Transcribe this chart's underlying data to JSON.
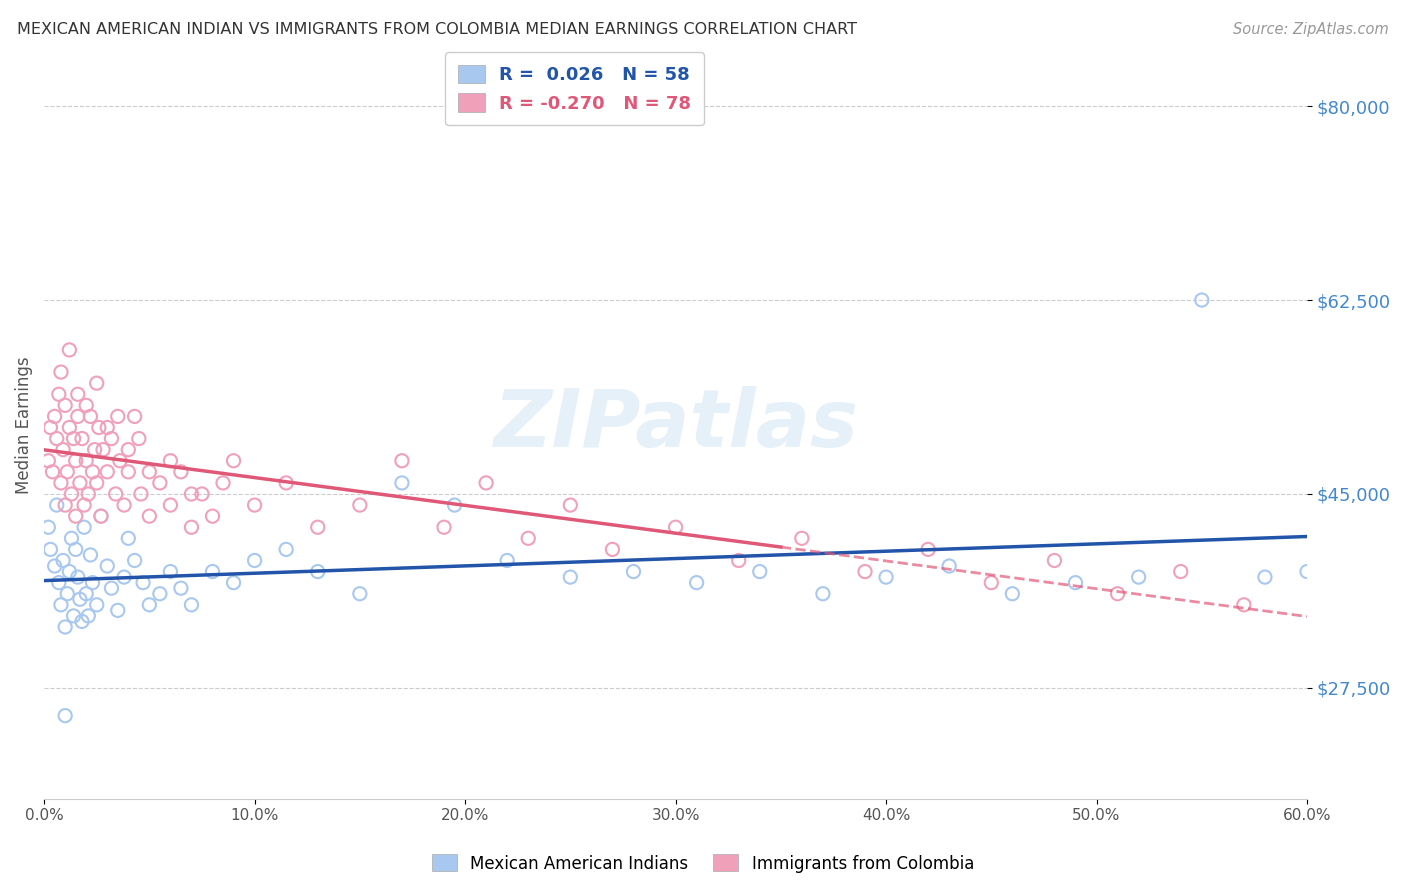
{
  "title": "MEXICAN AMERICAN INDIAN VS IMMIGRANTS FROM COLOMBIA MEDIAN EARNINGS CORRELATION CHART",
  "source": "Source: ZipAtlas.com",
  "ylabel": "Median Earnings",
  "xlim": [
    0.0,
    0.6
  ],
  "ylim": [
    17500,
    85000
  ],
  "yticks": [
    27500,
    45000,
    62500,
    80000
  ],
  "xticks": [
    0.0,
    0.1,
    0.2,
    0.3,
    0.4,
    0.5,
    0.6
  ],
  "blue_R": 0.026,
  "blue_N": 58,
  "pink_R": -0.27,
  "pink_N": 78,
  "blue_color": "#a8c8f0",
  "pink_color": "#f0a0b8",
  "blue_line_color": "#2255aa",
  "pink_line_color": "#e05878",
  "legend_label_blue": "Mexican American Indians",
  "legend_label_pink": "Immigrants from Colombia",
  "watermark": "ZIPatlas",
  "blue_scatter_x": [
    0.002,
    0.003,
    0.005,
    0.006,
    0.007,
    0.008,
    0.009,
    0.01,
    0.011,
    0.012,
    0.013,
    0.014,
    0.015,
    0.016,
    0.017,
    0.018,
    0.019,
    0.02,
    0.021,
    0.022,
    0.023,
    0.025,
    0.027,
    0.03,
    0.032,
    0.035,
    0.038,
    0.04,
    0.043,
    0.047,
    0.05,
    0.055,
    0.06,
    0.065,
    0.07,
    0.08,
    0.09,
    0.1,
    0.115,
    0.13,
    0.15,
    0.17,
    0.195,
    0.22,
    0.25,
    0.28,
    0.31,
    0.34,
    0.37,
    0.4,
    0.43,
    0.46,
    0.49,
    0.52,
    0.55,
    0.58,
    0.6,
    0.01
  ],
  "blue_scatter_y": [
    42000,
    40000,
    38500,
    44000,
    37000,
    35000,
    39000,
    33000,
    36000,
    38000,
    41000,
    34000,
    40000,
    37500,
    35500,
    33500,
    42000,
    36000,
    34000,
    39500,
    37000,
    35000,
    43000,
    38500,
    36500,
    34500,
    37500,
    41000,
    39000,
    37000,
    35000,
    36000,
    38000,
    36500,
    35000,
    38000,
    37000,
    39000,
    40000,
    38000,
    36000,
    46000,
    44000,
    39000,
    37500,
    38000,
    37000,
    38000,
    36000,
    37500,
    38500,
    36000,
    37000,
    37500,
    62500,
    37500,
    38000,
    25000
  ],
  "pink_scatter_x": [
    0.002,
    0.003,
    0.004,
    0.005,
    0.006,
    0.007,
    0.008,
    0.009,
    0.01,
    0.011,
    0.012,
    0.013,
    0.014,
    0.015,
    0.016,
    0.017,
    0.018,
    0.019,
    0.02,
    0.021,
    0.022,
    0.023,
    0.024,
    0.025,
    0.026,
    0.027,
    0.028,
    0.03,
    0.032,
    0.034,
    0.036,
    0.038,
    0.04,
    0.043,
    0.046,
    0.05,
    0.055,
    0.06,
    0.065,
    0.07,
    0.075,
    0.08,
    0.09,
    0.1,
    0.115,
    0.13,
    0.15,
    0.17,
    0.19,
    0.21,
    0.23,
    0.25,
    0.27,
    0.3,
    0.33,
    0.36,
    0.39,
    0.42,
    0.45,
    0.48,
    0.51,
    0.54,
    0.57,
    0.008,
    0.012,
    0.016,
    0.02,
    0.025,
    0.03,
    0.035,
    0.04,
    0.045,
    0.05,
    0.06,
    0.07,
    0.085,
    0.01,
    0.015
  ],
  "pink_scatter_y": [
    48000,
    51000,
    47000,
    52000,
    50000,
    54000,
    46000,
    49000,
    53000,
    47000,
    51000,
    45000,
    50000,
    48000,
    52000,
    46000,
    50000,
    44000,
    48000,
    45000,
    52000,
    47000,
    49000,
    46000,
    51000,
    43000,
    49000,
    47000,
    50000,
    45000,
    48000,
    44000,
    47000,
    52000,
    45000,
    43000,
    46000,
    44000,
    47000,
    42000,
    45000,
    43000,
    48000,
    44000,
    46000,
    42000,
    44000,
    48000,
    42000,
    46000,
    41000,
    44000,
    40000,
    42000,
    39000,
    41000,
    38000,
    40000,
    37000,
    39000,
    36000,
    38000,
    35000,
    56000,
    58000,
    54000,
    53000,
    55000,
    51000,
    52000,
    49000,
    50000,
    47000,
    48000,
    45000,
    46000,
    44000,
    43000
  ]
}
